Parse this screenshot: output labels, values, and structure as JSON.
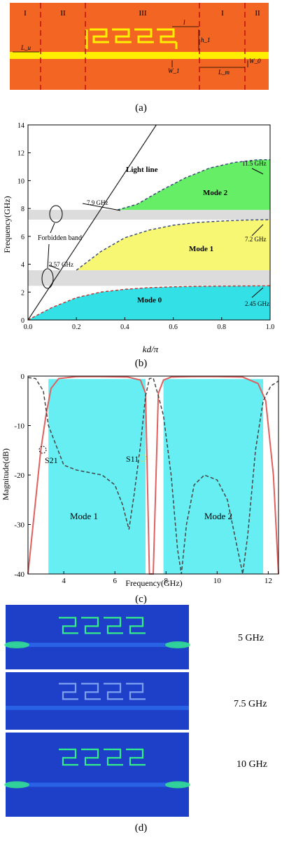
{
  "panel_a": {
    "caption": "(a)",
    "section_labels": [
      "I",
      "II",
      "III",
      "I",
      "II"
    ],
    "dimension_labels": {
      "lu": "L_u",
      "l": "l",
      "h1": "h_1",
      "w1": "W_1",
      "lm": "L_m",
      "w0": "W_0"
    },
    "colors": {
      "substrate": "#f26522",
      "metal": "#ffee00",
      "divider": "#c01010"
    }
  },
  "panel_b": {
    "caption": "(b)",
    "chart_data": {
      "type": "area",
      "xlabel": "kd/π",
      "ylabel": "Frequency(GHz)",
      "xlim": [
        0.0,
        1.0
      ],
      "ylim": [
        0,
        14
      ],
      "x_ticks": [
        "0.0",
        "0.2",
        "0.4",
        "0.6",
        "0.8",
        "1.0"
      ],
      "y_ticks": [
        "0",
        "2",
        "4",
        "6",
        "8",
        "10",
        "12",
        "14"
      ],
      "light_line_label": "Light line",
      "forbidden_band_label": "Forbidden band",
      "forbidden_bands": [
        [
          2.45,
          3.57
        ],
        [
          7.2,
          7.9
        ]
      ],
      "series": [
        {
          "name": "Mode 0",
          "color": "#33e0e6",
          "x": [
            0.0,
            0.1,
            0.2,
            0.3,
            0.4,
            0.5,
            0.6,
            0.7,
            0.8,
            0.9,
            1.0
          ],
          "y": [
            0.0,
            0.9,
            1.6,
            2.0,
            2.2,
            2.32,
            2.38,
            2.41,
            2.43,
            2.44,
            2.45
          ]
        },
        {
          "name": "Mode 1",
          "color": "#f7f774",
          "x": [
            0.2,
            0.3,
            0.4,
            0.5,
            0.6,
            0.7,
            0.8,
            0.9,
            1.0
          ],
          "y": [
            3.57,
            4.9,
            5.9,
            6.45,
            6.8,
            7.0,
            7.1,
            7.17,
            7.2
          ]
        },
        {
          "name": "Mode 2",
          "color": "#66ee66",
          "x": [
            0.37,
            0.45,
            0.55,
            0.65,
            0.75,
            0.85,
            0.95,
            1.0
          ],
          "y": [
            7.9,
            8.3,
            9.3,
            10.2,
            10.9,
            11.3,
            11.5,
            11.5
          ]
        }
      ],
      "annotations": [
        "7.9 GHz",
        "11.5 GHz",
        "7.2 GHz",
        "3.57 GHz",
        "2.45 GHz"
      ],
      "grid": false
    }
  },
  "panel_c": {
    "caption": "(c)",
    "chart_data": {
      "type": "line",
      "xlabel": "Frequency(GHz)",
      "ylabel": "Magnitude(dB)",
      "xlim": [
        2.6,
        12.4
      ],
      "ylim": [
        -40,
        0
      ],
      "x_ticks": [
        "4",
        "6",
        "8",
        "10",
        "12"
      ],
      "y_ticks": [
        "0",
        "-10",
        "-20",
        "-30",
        "-40"
      ],
      "passbands": [
        {
          "label": "Mode 1",
          "range": [
            3.4,
            7.2
          ]
        },
        {
          "label": "Mode 2",
          "range": [
            7.9,
            11.8
          ]
        }
      ],
      "series": [
        {
          "name": "S21",
          "color": "#e06060",
          "style": "solid",
          "x": [
            2.6,
            2.9,
            3.1,
            3.3,
            3.5,
            3.8,
            4.5,
            5.5,
            6.5,
            7.0,
            7.2,
            7.35,
            7.5,
            7.7,
            7.9,
            8.2,
            9.0,
            10.0,
            11.0,
            11.6,
            11.9,
            12.2,
            12.4
          ],
          "y": [
            -40,
            -25,
            -15,
            -8,
            -2.5,
            -0.5,
            -0.1,
            -0.1,
            -0.2,
            -0.8,
            -3.5,
            -40,
            -40,
            -3.5,
            -0.8,
            -0.2,
            -0.1,
            -0.1,
            -0.2,
            -1.5,
            -5,
            -20,
            -40
          ]
        },
        {
          "name": "S11",
          "color": "#444444",
          "style": "dashed",
          "x": [
            2.6,
            2.9,
            3.2,
            3.4,
            3.7,
            4.0,
            4.5,
            5.0,
            5.5,
            6.0,
            6.3,
            6.55,
            6.75,
            7.0,
            7.2,
            7.35,
            7.5,
            7.7,
            7.9,
            8.2,
            8.45,
            8.6,
            8.8,
            9.1,
            9.5,
            10.0,
            10.4,
            10.8,
            11.0,
            11.2,
            11.5,
            11.8,
            12.1,
            12.4
          ],
          "y": [
            -0.3,
            -0.5,
            -3,
            -10,
            -14,
            -18,
            -19,
            -19.5,
            -20,
            -22,
            -26,
            -31,
            -24,
            -14,
            -4,
            -0.5,
            -0.4,
            -4,
            -8,
            -20,
            -35,
            -40,
            -30,
            -22,
            -20,
            -21,
            -25,
            -35,
            -40,
            -32,
            -15,
            -5,
            -2,
            -1
          ]
        }
      ],
      "series_labels": {
        "s11": "S11",
        "s21": "S21"
      },
      "grid": false
    }
  },
  "panel_d": {
    "caption": "(d)",
    "frequency_labels": [
      "5 GHz",
      "7.5 GHz",
      "10 GHz"
    ],
    "colors": {
      "background": "#1e40c8",
      "field_low": "#2a66e8",
      "field_high": "#33ee88"
    }
  }
}
